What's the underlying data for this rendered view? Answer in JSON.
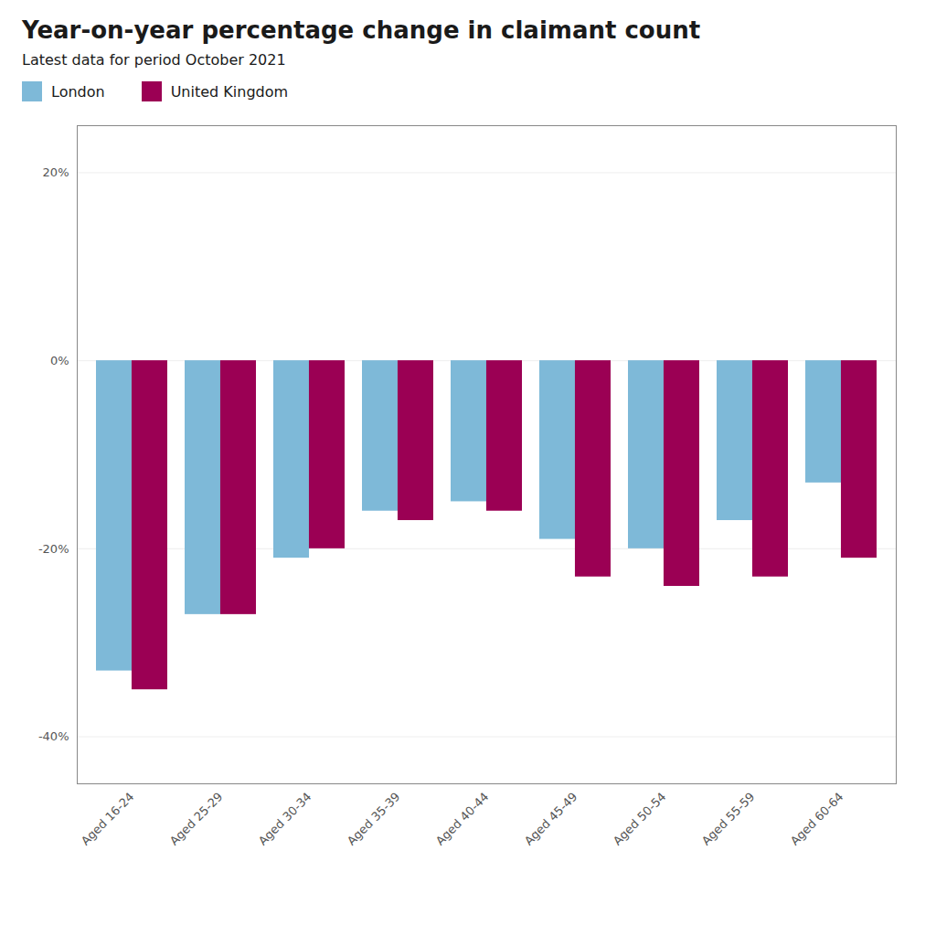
{
  "chart_data": {
    "type": "bar",
    "title": "Year-on-year percentage change in claimant count",
    "subtitle": "Latest data for period October 2021",
    "categories": [
      "Aged 16-24",
      "Aged 25-29",
      "Aged 30-34",
      "Aged 35-39",
      "Aged 40-44",
      "Aged 45-49",
      "Aged 50-54",
      "Aged 55-59",
      "Aged 60-64"
    ],
    "series": [
      {
        "name": "London",
        "color": "#7EB9D8",
        "values": [
          -33,
          -27,
          -21,
          -16,
          -15,
          -19,
          -20,
          -17,
          -13
        ]
      },
      {
        "name": "United Kingdom",
        "color": "#9B0054",
        "values": [
          -35,
          -27,
          -20,
          -17,
          -16,
          -23,
          -24,
          -23,
          -21
        ]
      }
    ],
    "ylim": [
      -45,
      25
    ],
    "yticks": [
      {
        "value": -40,
        "label": "-40%"
      },
      {
        "value": -20,
        "label": "-20%"
      },
      {
        "value": 0,
        "label": "0%"
      },
      {
        "value": 20,
        "label": "20%"
      }
    ],
    "grid": true,
    "legend": "top"
  }
}
